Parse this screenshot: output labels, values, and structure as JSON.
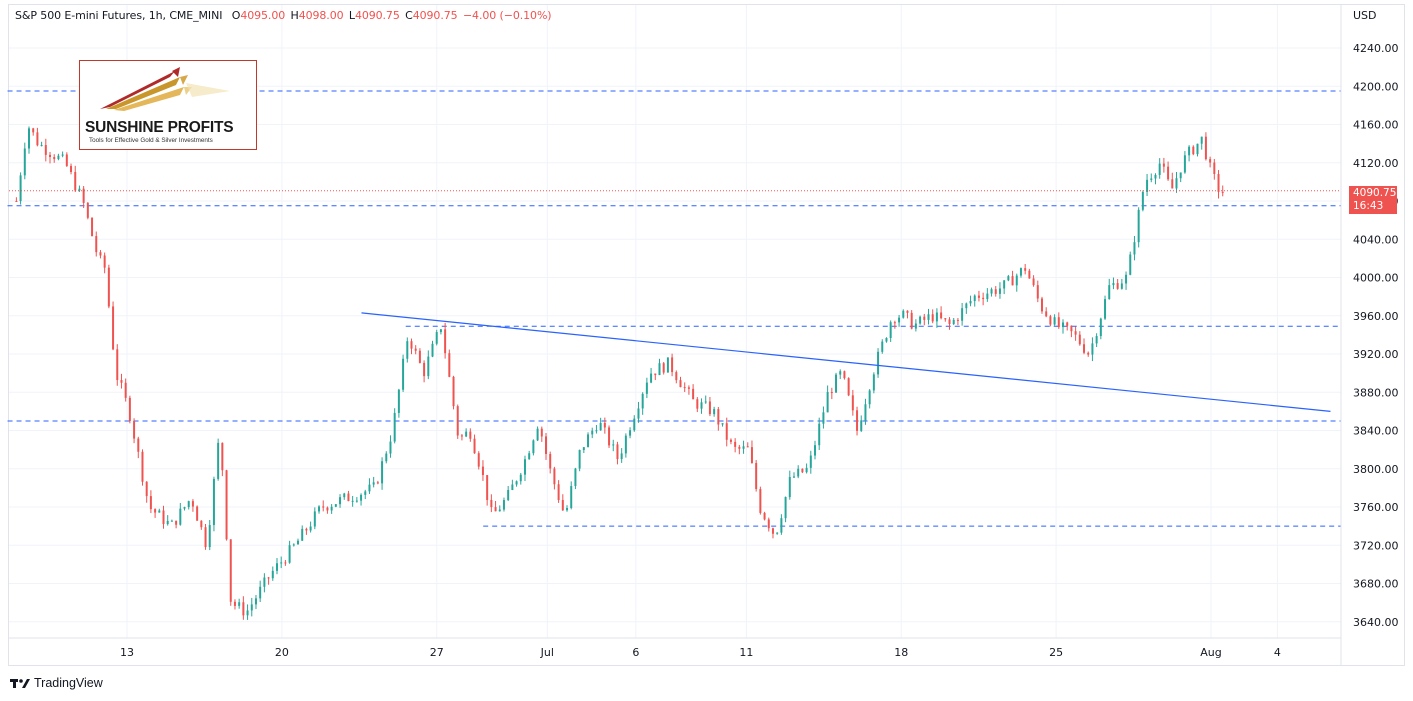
{
  "header": {
    "symbol": "S&P 500 E-mini Futures, 1h, CME_MINI",
    "open_label": "O",
    "open": "4095.00",
    "high_label": "H",
    "high": "4098.00",
    "low_label": "L",
    "low": "4090.75",
    "close_label": "C",
    "close": "4090.75",
    "change": "−4.00 (−0.10%)"
  },
  "logo": {
    "title": "SUNSHINE PROFITS",
    "subtitle": "Tools for Effective Gold & Silver Investments"
  },
  "footer": {
    "brand": "TradingView"
  },
  "last_price": {
    "price": "4090.75",
    "countdown": "16:43"
  },
  "colors": {
    "up": "#26a69a",
    "down": "#ef5350",
    "lines": "#2962ff",
    "grid": "#f0f3fa"
  },
  "chart_data": {
    "type": "candlestick",
    "currency_label": "USD",
    "y_range": [
      3620,
      4265
    ],
    "y_ticks": [
      "4240.00",
      "4200.00",
      "4160.00",
      "4120.00",
      "4080.00",
      "4040.00",
      "4000.00",
      "3960.00",
      "3920.00",
      "3880.00",
      "3840.00",
      "3800.00",
      "3760.00",
      "3720.00",
      "3680.00",
      "3640.00"
    ],
    "y_tick_values": [
      4240,
      4200,
      4160,
      4120,
      4080,
      4040,
      4000,
      3960,
      3920,
      3880,
      3840,
      3800,
      3760,
      3720,
      3680,
      3640
    ],
    "x_ticks": [
      "13",
      "20",
      "27",
      "Jul",
      "6",
      "11",
      "18",
      "25",
      "Aug",
      "4"
    ],
    "x_tick_days": [
      13,
      20,
      27,
      32,
      36,
      41,
      48,
      55,
      62,
      65
    ],
    "path_days": [
      8,
      8.5,
      9,
      10.2,
      11,
      11.7,
      12,
      12.5,
      13.1,
      14,
      15,
      15.9,
      16.6,
      17.2,
      17.7,
      18.4,
      19.5,
      20.6,
      21.8,
      23,
      24.2,
      25,
      25.7,
      26.4,
      27.2,
      28,
      28.5,
      29,
      29.5,
      30.2,
      31,
      31.6,
      32.1,
      32.8,
      33.5,
      34.3,
      35.2,
      35.8,
      36.6,
      37.5,
      38.6,
      39.5,
      40.4,
      41.1,
      41.6,
      42.3,
      43,
      43.8,
      44.7,
      45.3,
      46,
      46.7,
      47.6,
      48.1,
      48.6,
      49.4,
      50.2,
      51.3,
      52.6,
      53.6,
      54.3,
      55,
      55.8,
      56.5,
      57.4,
      58.2,
      59,
      59.7,
      60.2,
      60.7,
      61,
      61.6,
      62,
      62.4,
      62.7
    ],
    "path_prices": [
      4080,
      4160,
      4140,
      4120,
      4080,
      4020,
      4010,
      3900,
      3860,
      3760,
      3740,
      3770,
      3720,
      3840,
      3660,
      3650,
      3690,
      3720,
      3760,
      3770,
      3780,
      3840,
      3940,
      3900,
      3950,
      3830,
      3840,
      3800,
      3750,
      3770,
      3810,
      3850,
      3800,
      3750,
      3820,
      3850,
      3810,
      3850,
      3900,
      3910,
      3870,
      3860,
      3820,
      3820,
      3760,
      3730,
      3790,
      3800,
      3880,
      3900,
      3840,
      3900,
      3960,
      3960,
      3950,
      3960,
      3950,
      3980,
      3990,
      4010,
      3970,
      3950,
      3940,
      3920,
      3990,
      4000,
      4100,
      4120,
      4090,
      4120,
      4130,
      4145,
      4110,
      4090,
      4090
    ],
    "horizontal_levels": [
      {
        "price": 4195,
        "from_day": 7.6,
        "to_day": 70
      },
      {
        "price": 4075,
        "from_day": 7.6,
        "to_day": 70
      },
      {
        "price": 3949,
        "from_day": 25.6,
        "to_day": 70
      },
      {
        "price": 3850,
        "from_day": 7.6,
        "to_day": 70
      },
      {
        "price": 3740,
        "from_day": 29.1,
        "to_day": 70
      }
    ],
    "trendline": {
      "start_day": 23.6,
      "start_price": 3963,
      "end_day": 67.4,
      "end_price": 3860
    },
    "last_price_level": 4090.75
  }
}
